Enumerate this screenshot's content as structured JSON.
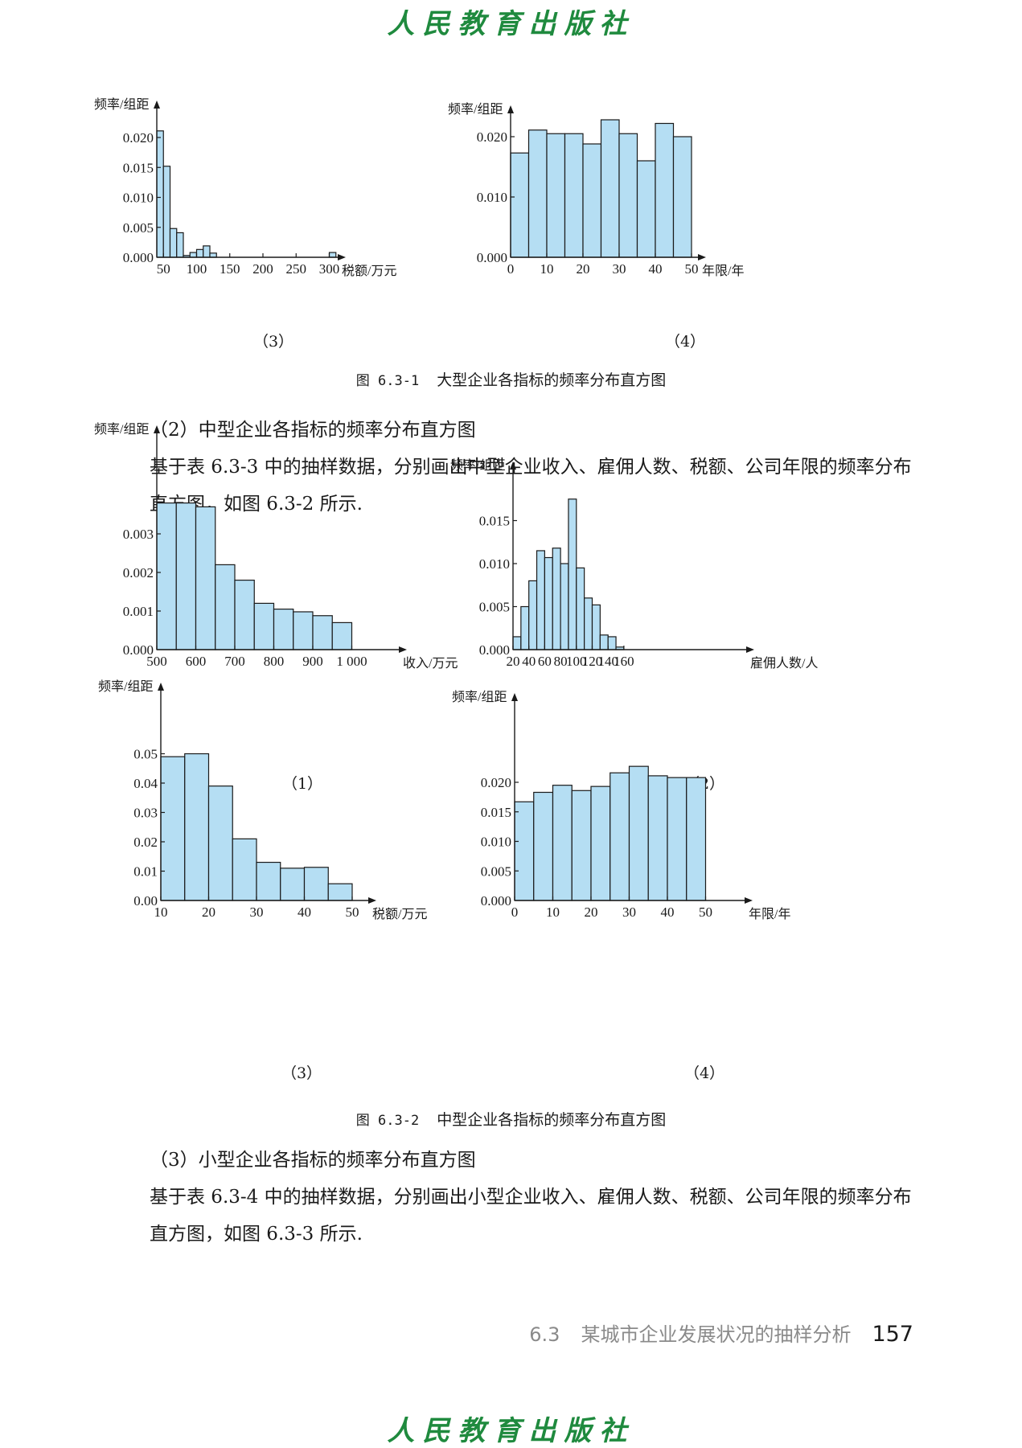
{
  "header": {
    "publisher": "人民教育出版社"
  },
  "footer": {
    "section_number": "6.3",
    "section_title": "某城市企业发展状况的抽样分析",
    "page_number": "157"
  },
  "figure1": {
    "caption_number": "图 6.3-1",
    "caption_text": "大型企业各指标的频率分布直方图",
    "panel_labels": [
      "（3）",
      "（4）"
    ]
  },
  "section_text": {
    "heading_2": "（2）中型企业各指标的频率分布直方图",
    "para_2": "基于表 6.3-3 中的抽样数据，分别画出中型企业收入、雇佣人数、税额、公司年限的频率分布直方图，如图 6.3-2 所示.",
    "heading_3": "（3）小型企业各指标的频率分布直方图",
    "para_3": "基于表 6.3-4 中的抽样数据，分别画出小型企业收入、雇佣人数、税额、公司年限的频率分布直方图，如图 6.3-3 所示."
  },
  "figure2": {
    "caption_number": "图 6.3-2",
    "caption_text": "中型企业各指标的频率分布直方图",
    "panel_labels": [
      "（1）",
      "（2）",
      "（3）",
      "（4）"
    ]
  },
  "colors": {
    "bar_fill": "#b5def3",
    "bar_stroke": "#1a1a1a",
    "publisher_green": "#1f8a3e"
  },
  "chart_data": [
    {
      "id": "large-tax",
      "type": "bar",
      "ylabel": "频率/组距",
      "xlabel": "税额/万元",
      "bin_edges": [
        40,
        50,
        60,
        70,
        80,
        90,
        100,
        110,
        120,
        130,
        140,
        150,
        160
      ],
      "extra_bins": [
        [
          300,
          310
        ]
      ],
      "values": [
        0.0211,
        0.0152,
        0.0048,
        0.0041,
        0.0003,
        0.0008,
        0.0013,
        0.0019,
        0.0007,
        0,
        0,
        0
      ],
      "extra_values": [
        0.0008
      ],
      "xticks": [
        50,
        100,
        150,
        200,
        250,
        300
      ],
      "yticks": [
        0.0,
        0.005,
        0.01,
        0.015,
        0.02
      ],
      "ytick_labels": [
        "0.000",
        "0.005",
        "0.010",
        "0.015",
        "0.020"
      ],
      "xlim": [
        40,
        320
      ],
      "ylim": [
        0,
        0.0225
      ]
    },
    {
      "id": "large-years",
      "type": "bar",
      "ylabel": "频率/组距",
      "xlabel": "年限/年",
      "bin_edges": [
        0,
        5,
        10,
        15,
        20,
        25,
        30,
        35,
        40,
        45,
        50
      ],
      "values": [
        0.0173,
        0.0211,
        0.0205,
        0.0205,
        0.0188,
        0.0228,
        0.0205,
        0.016,
        0.0222,
        0.02
      ],
      "xticks": [
        0,
        10,
        20,
        30,
        40,
        50
      ],
      "yticks": [
        0.0,
        0.01,
        0.02
      ],
      "ytick_labels": [
        "0.000",
        "0.010",
        "0.020"
      ],
      "xlim": [
        0,
        52
      ],
      "ylim": [
        0,
        0.0235
      ]
    },
    {
      "id": "medium-revenue",
      "type": "bar",
      "ylabel": "频率/组距",
      "xlabel": "收入/万元",
      "bin_edges": [
        500,
        550,
        600,
        650,
        700,
        750,
        800,
        850,
        900,
        950,
        1000
      ],
      "values": [
        0.0038,
        0.0038,
        0.0037,
        0.0022,
        0.0018,
        0.0012,
        0.00105,
        0.00098,
        0.00088,
        0.0007
      ],
      "xticks": [
        500,
        600,
        700,
        800,
        900,
        1000
      ],
      "yticks": [
        0.0,
        0.001,
        0.002,
        0.003
      ],
      "ytick_labels": [
        "0.000",
        "0.001",
        "0.002",
        "0.003"
      ],
      "xtick_labels": [
        "500",
        "600",
        "700",
        "800",
        "900",
        "1 000"
      ],
      "xlim": [
        500,
        1060
      ],
      "ylim": [
        0,
        0.004
      ]
    },
    {
      "id": "medium-employees",
      "type": "bar",
      "ylabel": "频率/组距",
      "xlabel": "雇佣人数/人",
      "bin_edges": [
        20,
        30,
        40,
        50,
        60,
        70,
        80,
        90,
        100,
        110,
        120,
        130,
        140,
        150,
        160
      ],
      "values": [
        0.0015,
        0.005,
        0.008,
        0.0115,
        0.0107,
        0.0118,
        0.01,
        0.0175,
        0.0095,
        0.006,
        0.0052,
        0.0017,
        0.0015,
        0.0003
      ],
      "xticks": [
        20,
        40,
        60,
        80,
        100,
        120,
        140,
        160
      ],
      "yticks": [
        0.0,
        0.005,
        0.01,
        0.015
      ],
      "ytick_labels": [
        "0.000",
        "0.005",
        "0.010",
        "0.015"
      ],
      "xlim": [
        20,
        170
      ],
      "ylim": [
        0,
        0.018
      ]
    },
    {
      "id": "medium-tax",
      "type": "bar",
      "ylabel": "频率/组距",
      "xlabel": "税额/万元",
      "bin_edges": [
        10,
        15,
        20,
        25,
        30,
        35,
        40,
        45,
        50
      ],
      "values": [
        0.049,
        0.05,
        0.039,
        0.021,
        0.013,
        0.011,
        0.0113,
        0.0057
      ],
      "xticks": [
        10,
        20,
        30,
        40,
        50
      ],
      "yticks": [
        0.0,
        0.01,
        0.02,
        0.03,
        0.04,
        0.05
      ],
      "ytick_labels": [
        "0.00",
        "0.01",
        "0.02",
        "0.03",
        "0.04",
        "0.05"
      ],
      "xlim": [
        10,
        55
      ],
      "ylim": [
        0,
        0.052
      ]
    },
    {
      "id": "medium-years",
      "type": "bar",
      "ylabel": "频率/组距",
      "xlabel": "年限/年",
      "bin_edges": [
        0,
        5,
        10,
        15,
        20,
        25,
        30,
        35,
        40,
        45,
        50
      ],
      "values": [
        0.0167,
        0.0183,
        0.0195,
        0.0186,
        0.0193,
        0.0216,
        0.0227,
        0.0211,
        0.0208,
        0.0208
      ],
      "xticks": [
        0,
        10,
        20,
        30,
        40,
        50
      ],
      "yticks": [
        0.0,
        0.005,
        0.01,
        0.015,
        0.02
      ],
      "ytick_labels": [
        "0.000",
        "0.005",
        "0.010",
        "0.015",
        "0.020"
      ],
      "xlim": [
        0,
        55
      ],
      "ylim": [
        0,
        0.0235
      ]
    }
  ]
}
